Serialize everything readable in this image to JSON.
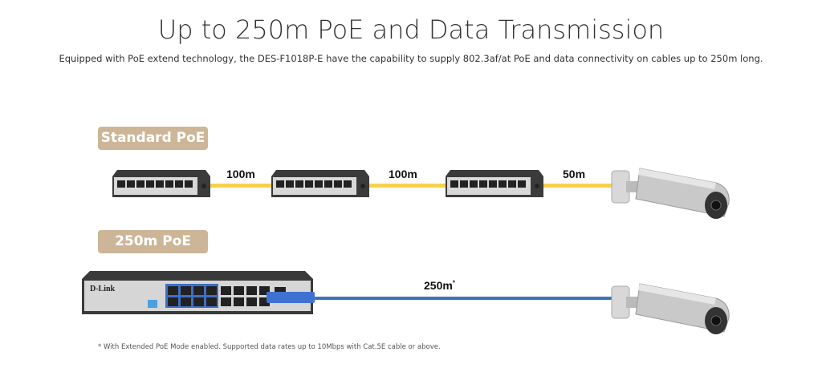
{
  "header": {
    "title": "Up to 250m PoE and Data Transmission",
    "subtitle": "Equipped with PoE extend technology, the DES-F1018P-E have the capability to supply 802.3af/at PoE and data connectivity on cables up to 250m long."
  },
  "standard": {
    "label": "Standard PoE",
    "distances": [
      "100m",
      "100m",
      "50m"
    ],
    "cable_color": "#f6d24a"
  },
  "extended": {
    "label": "250m PoE",
    "distance": "250m",
    "superscript": "*",
    "brand": "D-Link",
    "cable_color": "#3f72b8"
  },
  "badge_color": "#cdb698",
  "footnote": "* With Extended PoE Mode enabled. Supported data rates up to 10Mbps with Cat.5E cable or above."
}
